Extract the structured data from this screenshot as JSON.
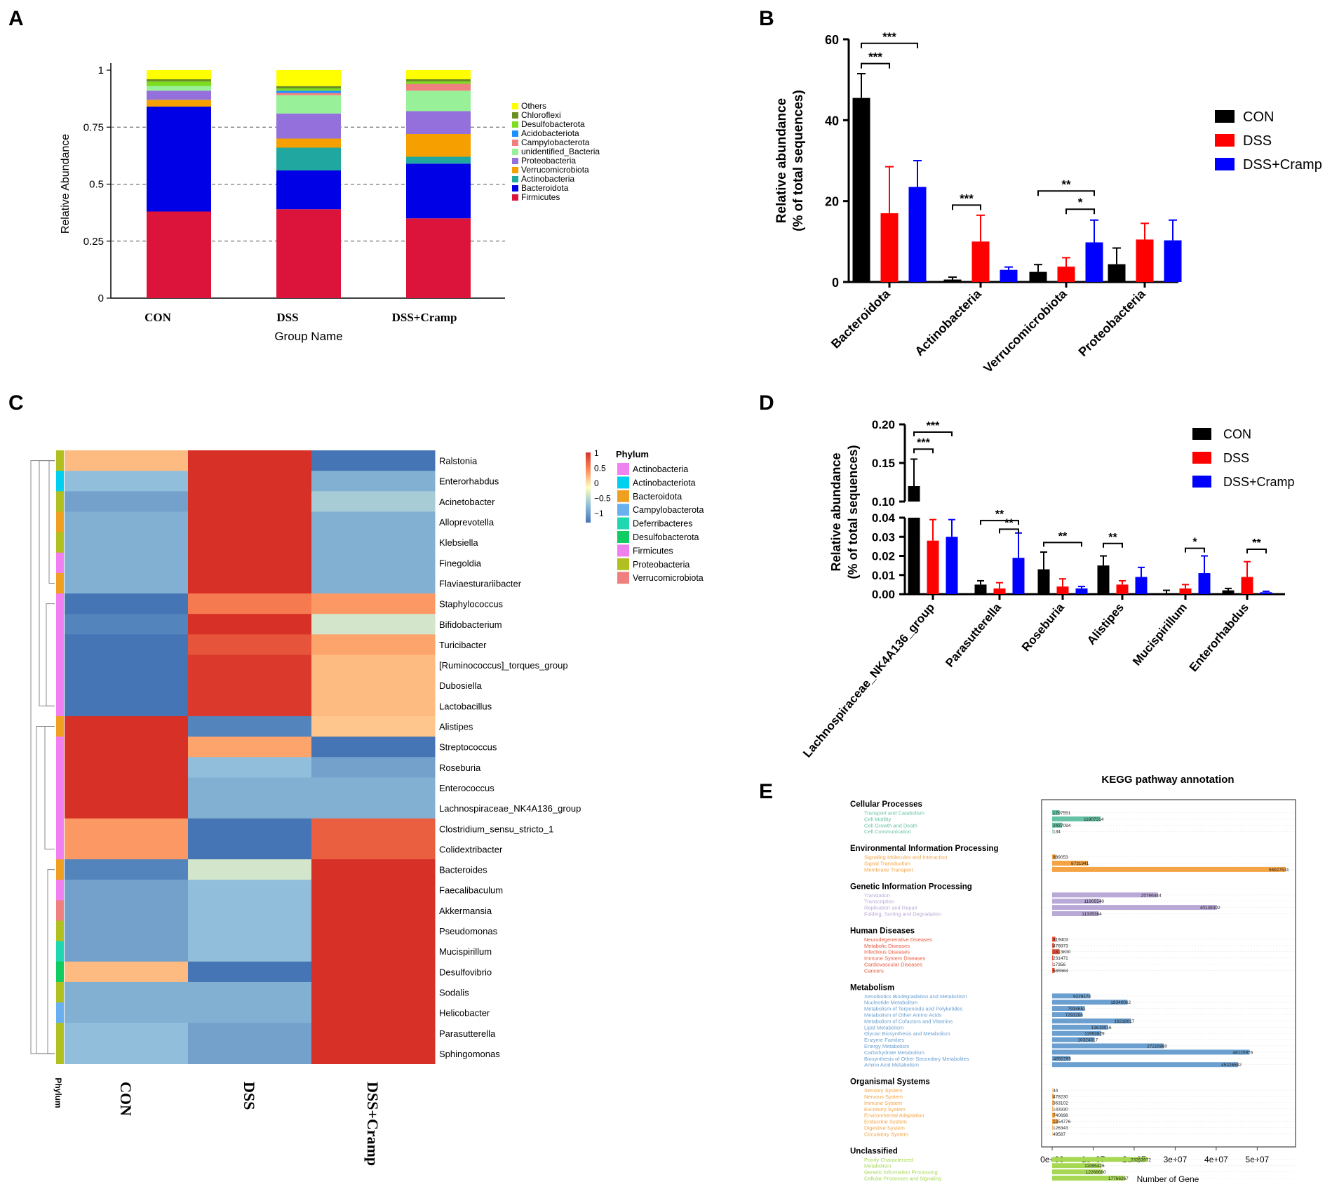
{
  "panel_letters": [
    "A",
    "B",
    "C",
    "D",
    "E"
  ],
  "chart_data": [
    {
      "panel": "A",
      "type": "bar",
      "stacked": true,
      "categories": [
        "CON",
        "DSS",
        "DSS+Cramp"
      ],
      "xlabel": "Group Name",
      "ylabel": "Relative Abundance",
      "ylim": [
        0,
        1
      ],
      "yticks": [
        "0",
        "0.25",
        "0.5",
        "0.75",
        "1"
      ],
      "series": [
        {
          "name": "Firmicutes",
          "color": "#dc143c",
          "values": [
            0.38,
            0.39,
            0.35
          ]
        },
        {
          "name": "Bacteroidota",
          "color": "#0000e6",
          "values": [
            0.46,
            0.17,
            0.24
          ]
        },
        {
          "name": "Actinobacteria",
          "color": "#20a8a0",
          "values": [
            0.0,
            0.1,
            0.03
          ]
        },
        {
          "name": "Verrucomicrobiota",
          "color": "#f5a000",
          "values": [
            0.03,
            0.04,
            0.1
          ]
        },
        {
          "name": "Proteobacteria",
          "color": "#9370db",
          "values": [
            0.04,
            0.11,
            0.1
          ]
        },
        {
          "name": "unidentified_Bacteria",
          "color": "#98f098",
          "values": [
            0.02,
            0.08,
            0.09
          ]
        },
        {
          "name": "Campylobacterota",
          "color": "#f08080",
          "values": [
            0.0,
            0.01,
            0.03
          ]
        },
        {
          "name": "Acidobacteriota",
          "color": "#1e90ff",
          "values": [
            0.0,
            0.01,
            0.0
          ]
        },
        {
          "name": "Desulfobacterota",
          "color": "#7cdc20",
          "values": [
            0.02,
            0.01,
            0.01
          ]
        },
        {
          "name": "Chloroflexi",
          "color": "#6b8e23",
          "values": [
            0.01,
            0.01,
            0.01
          ]
        },
        {
          "name": "Others",
          "color": "#ffff00",
          "values": [
            0.04,
            0.07,
            0.04
          ]
        }
      ]
    },
    {
      "panel": "B",
      "type": "bar",
      "categories": [
        "Bacteroidota",
        "Actinobacteria",
        "Verrucomicrobiota",
        "Proteobacteria"
      ],
      "ylabel_line1": "Relative abundance",
      "ylabel_line2": "(% of total sequences)",
      "ylim": [
        0,
        60
      ],
      "yticks": [
        "0",
        "20",
        "40",
        "60"
      ],
      "series": [
        {
          "name": "CON",
          "color": "#000000",
          "values": [
            45.5,
            0.6,
            2.5,
            4.4
          ],
          "errors": [
            6.0,
            0.6,
            1.8,
            4.0
          ]
        },
        {
          "name": "DSS",
          "color": "#ff0000",
          "values": [
            17.0,
            10.0,
            3.8,
            10.5
          ],
          "errors": [
            11.5,
            6.5,
            2.2,
            4.0
          ]
        },
        {
          "name": "DSS+Cramp",
          "color": "#0000ff",
          "values": [
            23.5,
            3.0,
            9.8,
            10.3
          ],
          "errors": [
            6.5,
            0.7,
            5.5,
            5.0
          ]
        }
      ],
      "significance": [
        {
          "label": "***",
          "cat": 0,
          "from": 0,
          "to": 2,
          "y": 59
        },
        {
          "label": "***",
          "cat": 0,
          "from": 0,
          "to": 1,
          "y": 54
        },
        {
          "label": "***",
          "cat": 1,
          "from": 0,
          "to": 1,
          "y": 19
        },
        {
          "label": "**",
          "cat": 2,
          "from": 0,
          "to": 2,
          "y": 22.5
        },
        {
          "label": "*",
          "cat": 2,
          "from": 1,
          "to": 2,
          "y": 18
        }
      ]
    },
    {
      "panel": "C",
      "type": "heatmap",
      "columns": [
        "CON",
        "DSS",
        "DSS+Cramp"
      ],
      "colorbar_ticks": [
        "1",
        "0.5",
        "0",
        "−0.5",
        "−1"
      ],
      "phylum_title": "Phylum",
      "phylum_axis_label": "Phylum",
      "phyla": [
        {
          "name": "Actinobacteria",
          "color": "#ee82ee"
        },
        {
          "name": "Actinobacteriota",
          "color": "#00d0f0"
        },
        {
          "name": "Bacteroidota",
          "color": "#f0a020"
        },
        {
          "name": "Campylobacterota",
          "color": "#6ab0f0"
        },
        {
          "name": "Deferribacteres",
          "color": "#20d8b0"
        },
        {
          "name": "Desulfobacterota",
          "color": "#10cc60"
        },
        {
          "name": "Firmicutes",
          "color": "#f080f0"
        },
        {
          "name": "Proteobacteria",
          "color": "#b0c020"
        },
        {
          "name": "Verrucomicrobiota",
          "color": "#f08080"
        }
      ],
      "rows": [
        {
          "genus": "Ralstonia",
          "phylum": 7,
          "values": [
            0.3,
            1.0,
            -1.0
          ]
        },
        {
          "genus": "Enterorhabdus",
          "phylum": 1,
          "values": [
            -0.5,
            1.0,
            -0.6
          ]
        },
        {
          "genus": "Acinetobacter",
          "phylum": 7,
          "values": [
            -0.7,
            1.0,
            -0.4
          ]
        },
        {
          "genus": "Alloprevotella",
          "phylum": 2,
          "values": [
            -0.6,
            1.0,
            -0.6
          ]
        },
        {
          "genus": "Klebsiella",
          "phylum": 7,
          "values": [
            -0.6,
            1.0,
            -0.6
          ]
        },
        {
          "genus": "Finegoldia",
          "phylum": 6,
          "values": [
            -0.6,
            1.0,
            -0.6
          ]
        },
        {
          "genus": "Flaviaesturariibacter",
          "phylum": 2,
          "values": [
            -0.6,
            1.0,
            -0.6
          ]
        },
        {
          "genus": "Staphylococcus",
          "phylum": 6,
          "values": [
            -1.2,
            0.6,
            0.45
          ]
        },
        {
          "genus": "Bifidobacterium",
          "phylum": 6,
          "values": [
            -0.9,
            1.0,
            -0.2
          ]
        },
        {
          "genus": "Turicibacter",
          "phylum": 6,
          "values": [
            -1.1,
            0.8,
            0.4
          ]
        },
        {
          "genus": "[Ruminococcus]_torques_group",
          "phylum": 6,
          "values": [
            -1.1,
            0.95,
            0.3
          ]
        },
        {
          "genus": "Dubosiella",
          "phylum": 6,
          "values": [
            -1.1,
            0.95,
            0.3
          ]
        },
        {
          "genus": "Lactobacillus",
          "phylum": 6,
          "values": [
            -1.1,
            0.95,
            0.3
          ]
        },
        {
          "genus": "Alistipes",
          "phylum": 2,
          "values": [
            1.0,
            -0.9,
            0.25
          ]
        },
        {
          "genus": "Streptococcus",
          "phylum": 6,
          "values": [
            1.0,
            0.4,
            -1.0
          ]
        },
        {
          "genus": "Roseburia",
          "phylum": 6,
          "values": [
            1.0,
            -0.5,
            -0.7
          ]
        },
        {
          "genus": "Enterococcus",
          "phylum": 6,
          "values": [
            1.0,
            -0.6,
            -0.6
          ]
        },
        {
          "genus": "Lachnospiraceae_NK4A136_group",
          "phylum": 6,
          "values": [
            1.0,
            -0.6,
            -0.6
          ]
        },
        {
          "genus": "Clostridium_sensu_stricto_1",
          "phylum": 6,
          "values": [
            0.45,
            -1.2,
            0.75
          ]
        },
        {
          "genus": "Colidextribacter",
          "phylum": 6,
          "values": [
            0.45,
            -1.2,
            0.75
          ]
        },
        {
          "genus": "Bacteroides",
          "phylum": 2,
          "values": [
            -0.9,
            -0.2,
            1.0
          ]
        },
        {
          "genus": "Faecalibaculum",
          "phylum": 6,
          "values": [
            -0.7,
            -0.5,
            1.0
          ]
        },
        {
          "genus": "Akkermansia",
          "phylum": 8,
          "values": [
            -0.7,
            -0.5,
            1.0
          ]
        },
        {
          "genus": "Pseudomonas",
          "phylum": 7,
          "values": [
            -0.7,
            -0.5,
            1.0
          ]
        },
        {
          "genus": "Mucispirillum",
          "phylum": 4,
          "values": [
            -0.7,
            -0.5,
            1.0
          ]
        },
        {
          "genus": "Desulfovibrio",
          "phylum": 5,
          "values": [
            0.3,
            -1.0,
            1.0
          ]
        },
        {
          "genus": "Sodalis",
          "phylum": 7,
          "values": [
            -0.6,
            -0.6,
            1.0
          ]
        },
        {
          "genus": "Helicobacter",
          "phylum": 3,
          "values": [
            -0.6,
            -0.6,
            1.0
          ]
        },
        {
          "genus": "Parasutterella",
          "phylum": 7,
          "values": [
            -0.5,
            -0.7,
            1.0
          ]
        },
        {
          "genus": "Sphingomonas",
          "phylum": 7,
          "values": [
            -0.5,
            -0.7,
            1.0
          ]
        }
      ]
    },
    {
      "panel": "D",
      "type": "bar",
      "broken_axis": true,
      "categories": [
        "Lachnospiraceae_NK4A136_group",
        "Parasutterella",
        "Roseburia",
        "Alistipes",
        "Mucispirillum",
        "Enterorhabdus"
      ],
      "ylabel_line1": "Relative abundance",
      "ylabel_line2": "(% of total sequences)",
      "ylim_low": [
        0,
        0.04
      ],
      "ylim_high": [
        0.1,
        0.2
      ],
      "yticks_low": [
        "0.00",
        "0.01",
        "0.02",
        "0.03",
        "0.04"
      ],
      "yticks_high": [
        "0.10",
        "0.15",
        "0.20"
      ],
      "series": [
        {
          "name": "CON",
          "color": "#000000",
          "values": [
            0.12,
            0.005,
            0.013,
            0.015,
            0.0,
            0.002
          ],
          "errors": [
            0.035,
            0.002,
            0.009,
            0.005,
            0.002,
            0.001
          ]
        },
        {
          "name": "DSS",
          "color": "#ff0000",
          "values": [
            0.028,
            0.003,
            0.004,
            0.005,
            0.003,
            0.009
          ],
          "errors": [
            0.011,
            0.003,
            0.004,
            0.002,
            0.002,
            0.008
          ]
        },
        {
          "name": "DSS+Cramp",
          "color": "#0000ff",
          "values": [
            0.03,
            0.019,
            0.003,
            0.009,
            0.011,
            0.001
          ],
          "errors": [
            0.009,
            0.013,
            0.001,
            0.005,
            0.009,
            0.0005
          ]
        }
      ],
      "significance": [
        {
          "label": "***",
          "cat": 0,
          "from": 0,
          "to": 2,
          "y": 0.19
        },
        {
          "label": "***",
          "cat": 0,
          "from": 0,
          "to": 1,
          "y": 0.168
        },
        {
          "label": "**",
          "cat": 1,
          "from": 0,
          "to": 2,
          "y": 0.0385
        },
        {
          "label": "**",
          "cat": 1,
          "from": 1,
          "to": 2,
          "y": 0.034
        },
        {
          "label": "**",
          "cat": 2,
          "from": 0,
          "to": 2,
          "y": 0.027
        },
        {
          "label": "**",
          "cat": 3,
          "from": 0,
          "to": 1,
          "y": 0.0265
        },
        {
          "label": "*",
          "cat": 4,
          "from": 1,
          "to": 2,
          "y": 0.024
        },
        {
          "label": "**",
          "cat": 5,
          "from": 1,
          "to": 2,
          "y": 0.0235
        }
      ]
    },
    {
      "panel": "E",
      "type": "bar",
      "orientation": "horizontal",
      "title": "KEGG pathway annotation",
      "xlabel": "Number of Gene",
      "xticks": [
        "0e+00",
        "1e+07",
        "2e+07",
        "3e+07",
        "4e+07",
        "5e+07"
      ],
      "xlim": [
        0,
        59000000
      ],
      "groups": [
        {
          "name": "Cellular Processes",
          "color": "#66c2a5",
          "items": [
            {
              "label": "Transport and Catabolism",
              "value": 1797551
            },
            {
              "label": "Cell Motility",
              "value": 11807314
            },
            {
              "label": "Cell Growth and Death",
              "value": 2437094
            },
            {
              "label": "Cell Communication",
              "value": 134
            }
          ]
        },
        {
          "name": "Environmental Information Processing",
          "color": "#f4a444",
          "items": [
            {
              "label": "Signaling Molecules and Interaction",
              "value": 989053
            },
            {
              "label": "Signal Transduction",
              "value": 8731941
            },
            {
              "label": "Membrane Transport",
              "value": 56927531
            }
          ]
        },
        {
          "name": "Genetic Information Processing",
          "color": "#b9a9d6",
          "items": [
            {
              "label": "Translation",
              "value": 25766444
            },
            {
              "label": "Transcription",
              "value": 11905540
            },
            {
              "label": "Replication and Repair",
              "value": 40138302
            },
            {
              "label": "Folding, Sorting and Degradation",
              "value": 11335364
            }
          ]
        },
        {
          "name": "Human Diseases",
          "color": "#e8573e",
          "items": [
            {
              "label": "Neurodegenerative Diseases",
              "value": 819403
            },
            {
              "label": "Metabolic Diseases",
              "value": 478873
            },
            {
              "label": "Infectious Diseases",
              "value": 1813830
            },
            {
              "label": "Immune System Diseases",
              "value": 231471
            },
            {
              "label": "Cardiovascular Diseases",
              "value": 17356
            },
            {
              "label": "Cancers",
              "value": 585564
            }
          ]
        },
        {
          "name": "Metabolism",
          "color": "#6a9fd0",
          "items": [
            {
              "label": "Xenobiotics Biodegradation and Metabolism",
              "value": 9229174
            },
            {
              "label": "Nucleotide Metabolism",
              "value": 18340062
            },
            {
              "label": "Metabolism of Terpenoids and Polyketides",
              "value": 7934651
            },
            {
              "label": "Metabolism of Other Amino Acids",
              "value": 7293206
            },
            {
              "label": "Metabolism of Cofactors and Vitamins",
              "value": 19218017
            },
            {
              "label": "Lipid Metabolism",
              "value": 13619016
            },
            {
              "label": "Glycan Biosynthesis and Metabolism",
              "value": 11993829
            },
            {
              "label": "Enzyme Families",
              "value": 10324317
            },
            {
              "label": "Energy Metabolism",
              "value": 27215880
            },
            {
              "label": "Carbohydrate Metabolism",
              "value": 48120976
            },
            {
              "label": "Biosynthesis of Other Secondary Metabolites",
              "value": 4392295
            },
            {
              "label": "Amino Acid Metabolism",
              "value": 45326582
            }
          ]
        },
        {
          "name": "Organismal Systems",
          "color": "#f4a444",
          "items": [
            {
              "label": "Sensory System",
              "value": 44
            },
            {
              "label": "Nervous System",
              "value": 478230
            },
            {
              "label": "Immune System",
              "value": 363102
            },
            {
              "label": "Excretory System",
              "value": 143330
            },
            {
              "label": "Environmental Adaptation",
              "value": 740698
            },
            {
              "label": "Endocrine System",
              "value": 1354776
            },
            {
              "label": "Digestive System",
              "value": 126343
            },
            {
              "label": "Circulatory System",
              "value": 49587
            }
          ]
        },
        {
          "name": "Unclassified",
          "color": "#a6d854",
          "items": [
            {
              "label": "Poorly Characterized",
              "value": 23263972
            },
            {
              "label": "Metabolism",
              "value": 11995426
            },
            {
              "label": "Genetic Information Processing",
              "value": 12266680
            },
            {
              "label": "Cellular Processes and Signaling",
              "value": 17766267
            }
          ]
        }
      ]
    }
  ]
}
